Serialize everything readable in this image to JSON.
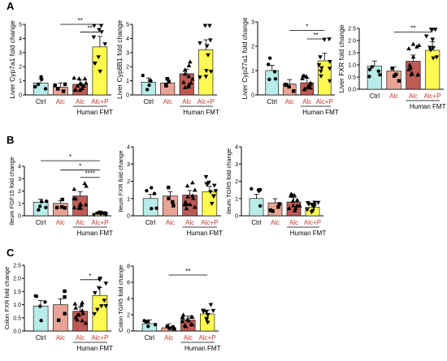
{
  "colors": {
    "ctrl": "#b8ece9",
    "alc_nofmt": "#e8a394",
    "alc": "#bf5a54",
    "alcp": "#fffa52",
    "point": "#000000",
    "sig": "#000000"
  },
  "chart_data": [
    {
      "panel": "A",
      "type": "bar",
      "ylabel": "Liver Cyp7a1 fold change",
      "ylim": [
        0,
        5
      ],
      "yticks": [
        "0",
        "1",
        "2",
        "3",
        "4",
        "5"
      ],
      "categories": [
        "Ctrl",
        "Alc",
        "Alc",
        "Alc+P"
      ],
      "group_label": "Human FMT",
      "values": [
        0.85,
        0.55,
        0.75,
        3.4
      ],
      "sig": [
        {
          "from": 1,
          "to": 3,
          "label": "**",
          "y": 5.0
        },
        {
          "from": 2,
          "to": 3,
          "label": "**",
          "y": 4.45
        }
      ]
    },
    {
      "panel": "",
      "type": "bar",
      "ylabel": "Liver Cyp8B1 fold change",
      "ylim": [
        0,
        5
      ],
      "yticks": [
        "0",
        "1",
        "2",
        "3",
        "4",
        "5"
      ],
      "categories": [
        "Ctrl",
        "Alc",
        "Alc",
        "Alc+P"
      ],
      "group_label": "Human FMT",
      "values": [
        0.9,
        0.85,
        1.5,
        3.2
      ],
      "sig": []
    },
    {
      "panel": "",
      "type": "bar",
      "ylabel": "Liver Cyp27a1 fold change",
      "ylim": [
        0,
        3
      ],
      "yticks": [
        "0",
        "1",
        "2",
        "3"
      ],
      "categories": [
        "Ctrl",
        "Alc",
        "Alc",
        "Alc+P"
      ],
      "group_label": "Human FMT",
      "values": [
        1.0,
        0.45,
        0.5,
        1.4
      ],
      "sig": [
        {
          "from": 1,
          "to": 3,
          "label": "*",
          "y": 2.65
        },
        {
          "from": 2,
          "to": 3,
          "label": "**",
          "y": 2.3
        }
      ]
    },
    {
      "panel": "",
      "type": "bar",
      "ylabel": "Liver FXR fold change",
      "ylim": [
        0,
        2.5
      ],
      "yticks": [
        "0.0",
        "0.5",
        "1.0",
        "1.5",
        "2.0",
        "2.5"
      ],
      "categories": [
        "Ctrl",
        "Alc",
        "Alc",
        "Alc+P"
      ],
      "group_label": "Human FMT",
      "values": [
        0.95,
        0.75,
        1.15,
        1.6
      ],
      "sig": [
        {
          "from": 1,
          "to": 3,
          "label": "**",
          "y": 2.35
        }
      ]
    },
    {
      "panel": "B",
      "type": "bar",
      "ylabel": "Ileum FGF15 fold change",
      "ylim": [
        0,
        4
      ],
      "yticks": [
        "0",
        "1",
        "2",
        "3",
        "4"
      ],
      "categories": [
        "Ctrl",
        "Alc",
        "Alc",
        "Alc+P"
      ],
      "group_label": "Human FMT",
      "values": [
        1.1,
        1.0,
        1.6,
        0.15
      ],
      "sig": [
        {
          "from": 0,
          "to": 3,
          "label": "*",
          "y": 4.45
        },
        {
          "from": 1,
          "to": 3,
          "label": "*",
          "y": 3.7
        },
        {
          "from": 2,
          "to": 3,
          "label": "****",
          "y": 3.1
        }
      ]
    },
    {
      "panel": "",
      "type": "bar",
      "ylabel": "Ileum FXR fold change",
      "ylim": [
        0,
        4
      ],
      "yticks": [
        "0",
        "1",
        "2",
        "3",
        "4"
      ],
      "categories": [
        "Ctrl",
        "Alc",
        "Alc",
        "Alc+P"
      ],
      "group_label": "Human FMT",
      "values": [
        1.0,
        1.15,
        1.2,
        1.4
      ],
      "sig": []
    },
    {
      "panel": "",
      "type": "bar",
      "ylabel": "Ileum TGR5 fold change",
      "ylim": [
        0,
        4
      ],
      "yticks": [
        "0",
        "1",
        "2",
        "3",
        "4"
      ],
      "categories": [
        "Ctrl",
        "Alc",
        "Alc",
        "Alc+P"
      ],
      "group_label": "Human FMT",
      "values": [
        1.0,
        0.75,
        0.8,
        0.5
      ],
      "sig": []
    },
    {
      "panel": "C",
      "type": "bar",
      "ylabel": "Colon FXR fold change",
      "ylim": [
        0,
        2.5
      ],
      "yticks": [
        "0.0",
        "0.5",
        "1.0",
        "1.5",
        "2.0",
        "2.5"
      ],
      "categories": [
        "Ctrl",
        "Alc",
        "Alc",
        "Alc+P"
      ],
      "group_label": "Human FMT",
      "values": [
        0.95,
        1.0,
        0.75,
        1.35
      ],
      "sig": [
        {
          "from": 2,
          "to": 3,
          "label": "*",
          "y": 1.95
        }
      ]
    },
    {
      "panel": "",
      "type": "bar",
      "ylabel": "Colon TGR5 fold change",
      "ylim": [
        0,
        8
      ],
      "yticks": [
        "0",
        "2",
        "4",
        "6",
        "8"
      ],
      "categories": [
        "Ctrl",
        "Alc",
        "Alc",
        "Alc+P"
      ],
      "group_label": "Human FMT",
      "values": [
        0.9,
        0.4,
        1.35,
        2.1
      ],
      "sig": [
        {
          "from": 1,
          "to": 3,
          "label": "**",
          "y": 6.9
        }
      ]
    }
  ]
}
